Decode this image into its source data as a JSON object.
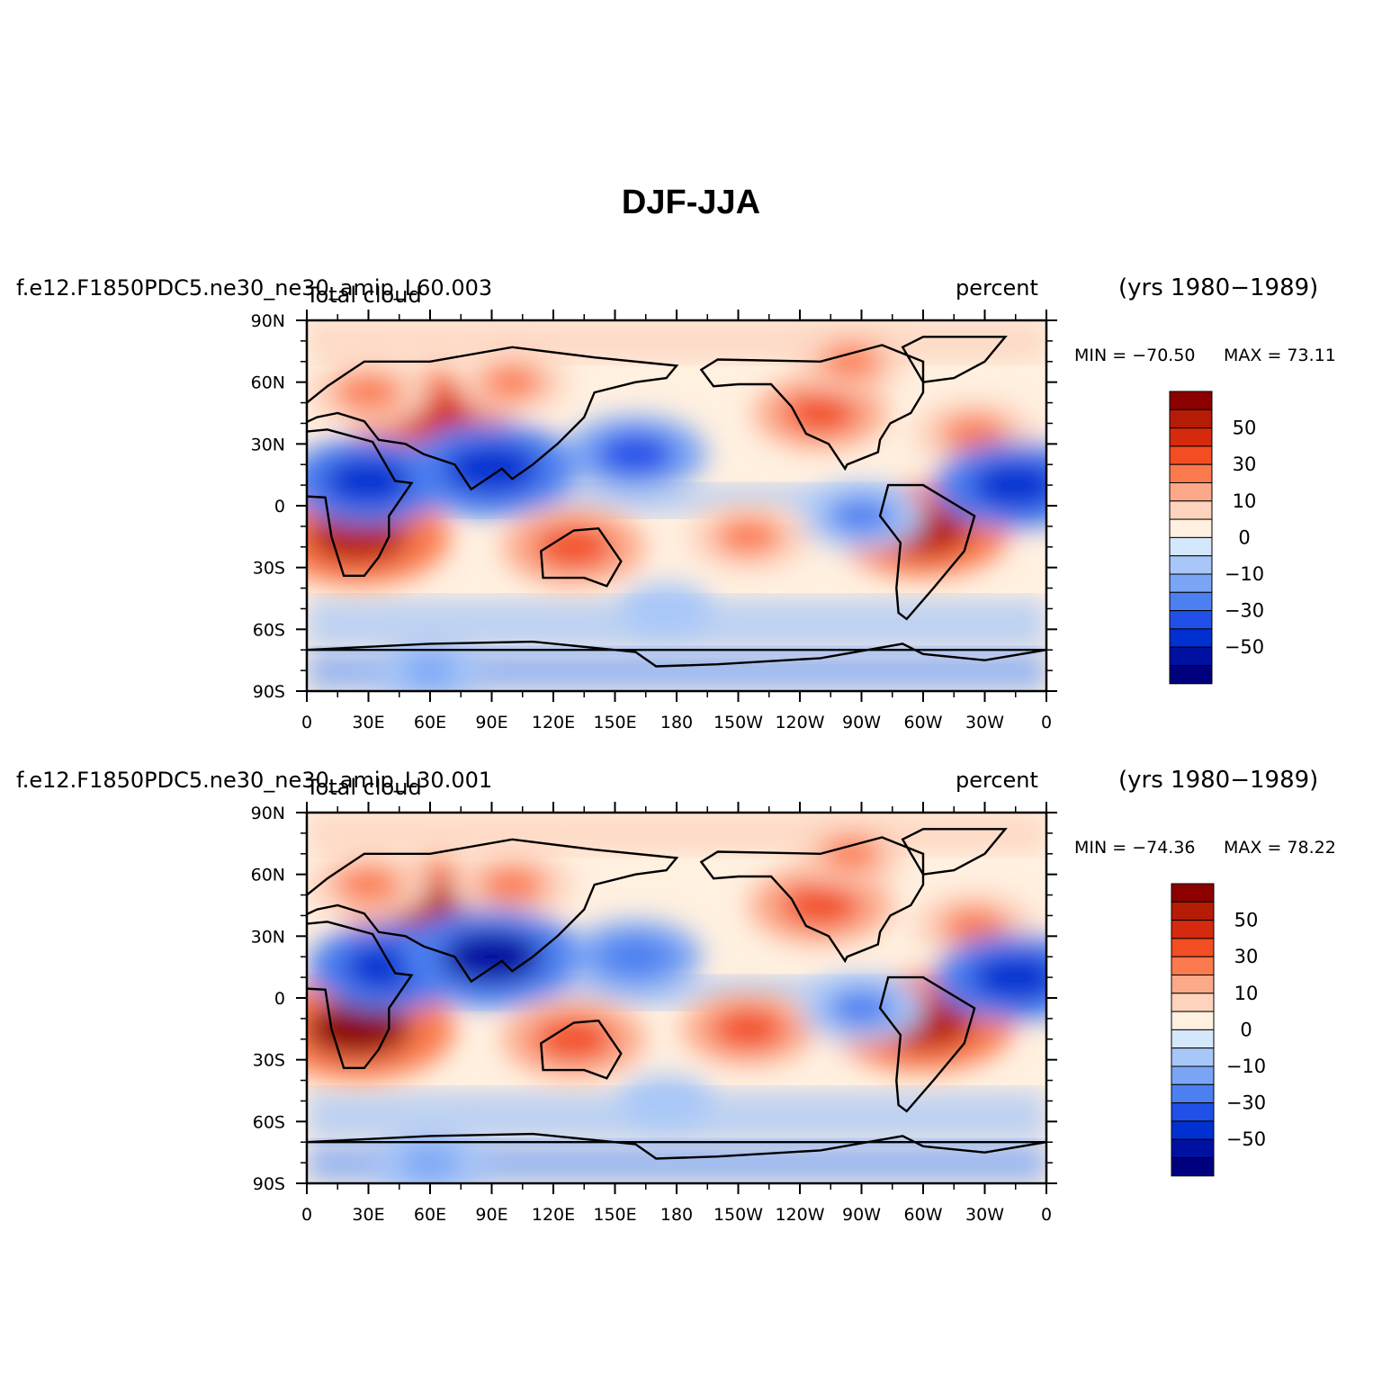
{
  "figure": {
    "title": "DJF-JJA"
  },
  "panels": [
    {
      "case_name": "f.e12.F1850PDC5.ne30_ne30_amip_L60.003",
      "variable": "Total cloud",
      "units": "percent",
      "years": "(yrs 1980−1989)",
      "min_label": "MIN = −70.50",
      "max_label": "MAX =  73.11"
    },
    {
      "case_name": "f.e12.F1850PDC5.ne30_ne30_amip_L30.001",
      "variable": "Total cloud",
      "units": "percent",
      "years": "(yrs 1980−1989)",
      "min_label": "MIN = −74.36",
      "max_label": "MAX =  78.22"
    }
  ],
  "chart_data": [
    {
      "type": "heatmap",
      "title": "f.e12.F1850PDC5.ne30_ne30_amip_L60.003",
      "subtitle": "Total cloud",
      "units": "percent",
      "period": "(yrs 1980−1989)",
      "min": -70.5,
      "max": 73.11,
      "x_range": [
        0,
        360
      ],
      "y_range": [
        -90,
        90
      ],
      "x_tick_labels": [
        "0",
        "30E",
        "60E",
        "90E",
        "120E",
        "150E",
        "180",
        "150W",
        "120W",
        "90W",
        "60W",
        "30W",
        "0"
      ],
      "y_tick_labels": [
        "90S",
        "60S",
        "30S",
        "0",
        "30N",
        "60N",
        "90N"
      ],
      "colorbar_labels": [
        "50",
        "30",
        "10",
        "0",
        "−10",
        "−30",
        "−50"
      ],
      "features": [
        {
          "lon": 60,
          "lat": 45,
          "value": 55
        },
        {
          "lon": 30,
          "lat": 55,
          "value": 35
        },
        {
          "lon": 100,
          "lat": 60,
          "value": 30
        },
        {
          "lon": 25,
          "lat": -15,
          "value": 65
        },
        {
          "lon": 130,
          "lat": -20,
          "value": 45
        },
        {
          "lon": 300,
          "lat": -12,
          "value": 60
        },
        {
          "lon": 215,
          "lat": -15,
          "value": 35
        },
        {
          "lon": 325,
          "lat": 35,
          "value": 35
        },
        {
          "lon": 250,
          "lat": 45,
          "value": 40
        },
        {
          "lon": 265,
          "lat": 70,
          "value": 30
        },
        {
          "lon": 30,
          "lat": 12,
          "value": -55
        },
        {
          "lon": 90,
          "lat": 18,
          "value": -60
        },
        {
          "lon": 160,
          "lat": 25,
          "value": -45
        },
        {
          "lon": 345,
          "lat": 10,
          "value": -55
        },
        {
          "lon": 270,
          "lat": -5,
          "value": -35
        },
        {
          "lon": 175,
          "lat": -50,
          "value": -20
        },
        {
          "lon": 60,
          "lat": -80,
          "value": -25
        }
      ]
    },
    {
      "type": "heatmap",
      "title": "f.e12.F1850PDC5.ne30_ne30_amip_L30.001",
      "subtitle": "Total cloud",
      "units": "percent",
      "period": "(yrs 1980−1989)",
      "min": -74.36,
      "max": 78.22,
      "x_range": [
        0,
        360
      ],
      "y_range": [
        -90,
        90
      ],
      "x_tick_labels": [
        "0",
        "30E",
        "60E",
        "90E",
        "120E",
        "150E",
        "180",
        "150W",
        "120W",
        "90W",
        "60W",
        "30W",
        "0"
      ],
      "y_tick_labels": [
        "90S",
        "60S",
        "30S",
        "0",
        "30N",
        "60N",
        "90N"
      ],
      "colorbar_labels": [
        "50",
        "30",
        "10",
        "0",
        "−10",
        "−30",
        "−50"
      ],
      "features": [
        {
          "lon": 60,
          "lat": 45,
          "value": 60
        },
        {
          "lon": 30,
          "lat": 55,
          "value": 35
        },
        {
          "lon": 100,
          "lat": 55,
          "value": 35
        },
        {
          "lon": 25,
          "lat": -15,
          "value": 70
        },
        {
          "lon": 130,
          "lat": -20,
          "value": 45
        },
        {
          "lon": 300,
          "lat": -12,
          "value": 65
        },
        {
          "lon": 215,
          "lat": -15,
          "value": 40
        },
        {
          "lon": 325,
          "lat": 35,
          "value": 35
        },
        {
          "lon": 250,
          "lat": 45,
          "value": 45
        },
        {
          "lon": 265,
          "lat": 70,
          "value": 30
        },
        {
          "lon": 40,
          "lat": 15,
          "value": -55
        },
        {
          "lon": 90,
          "lat": 20,
          "value": -65
        },
        {
          "lon": 160,
          "lat": 20,
          "value": -40
        },
        {
          "lon": 345,
          "lat": 10,
          "value": -55
        },
        {
          "lon": 270,
          "lat": -5,
          "value": -35
        },
        {
          "lon": 175,
          "lat": -50,
          "value": -20
        },
        {
          "lon": 60,
          "lat": -80,
          "value": -30
        }
      ]
    }
  ],
  "colors": {
    "levels": [
      "#00007f",
      "#0010a0",
      "#0030d0",
      "#2050e8",
      "#4c7ff0",
      "#7aa5f5",
      "#a8c7f8",
      "#d5e8fb",
      "#fff0e0",
      "#fdd3bd",
      "#fca98a",
      "#fb7a4d",
      "#f24d23",
      "#d52a0e",
      "#b51c06",
      "#8c0000"
    ]
  }
}
